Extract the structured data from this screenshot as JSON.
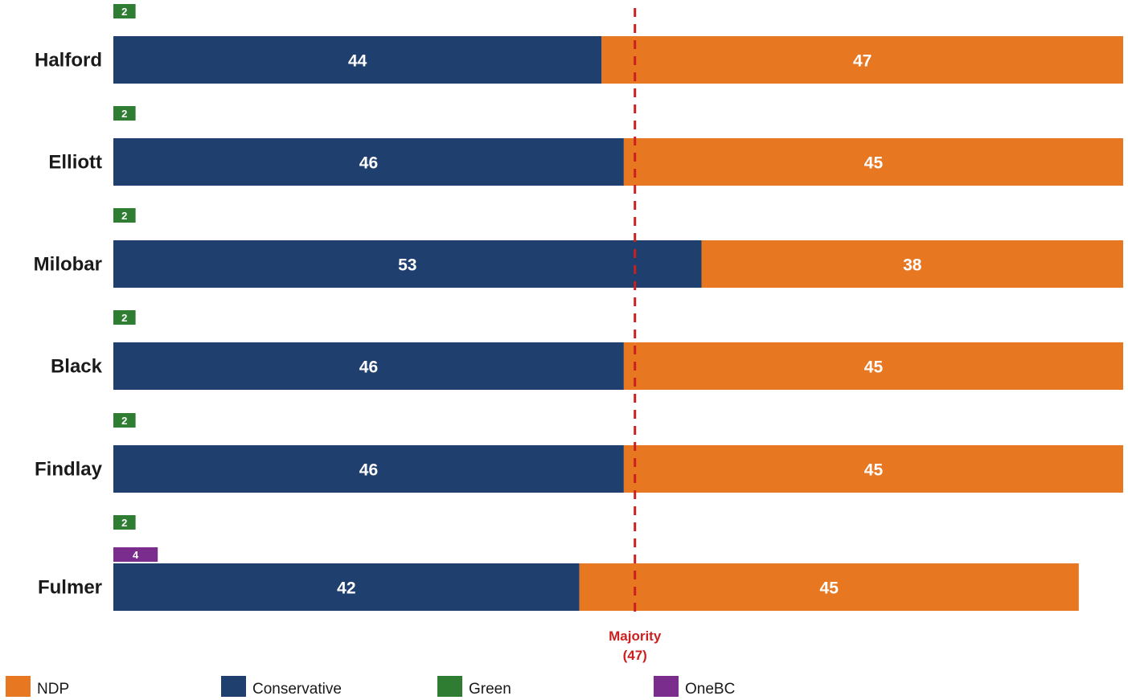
{
  "chart_data": {
    "type": "bar",
    "orientation": "horizontal",
    "stacked": true,
    "categories": [
      "Halford",
      "Elliott",
      "Milobar",
      "Black",
      "Findlay",
      "Fulmer"
    ],
    "series": [
      {
        "name": "Conservative",
        "color": "#1f3f6e",
        "values": [
          44,
          46,
          53,
          46,
          46,
          42
        ]
      },
      {
        "name": "NDP",
        "color": "#e87722",
        "values": [
          47,
          45,
          38,
          45,
          45,
          45
        ]
      },
      {
        "name": "Green",
        "color": "#2e7d32",
        "values": [
          2,
          2,
          2,
          2,
          2,
          2
        ]
      },
      {
        "name": "OneBC",
        "color": "#7b2d8e",
        "values": [
          null,
          null,
          null,
          null,
          null,
          4
        ]
      }
    ],
    "xlim": [
      0,
      91
    ],
    "reference_line": {
      "value": 47,
      "label_line1": "Majority",
      "label_line2": "(47)",
      "color": "#cc1f1f"
    },
    "legend": {
      "placement": "bottom-left",
      "entries": [
        {
          "name": "NDP",
          "color": "#e87722"
        },
        {
          "name": "Conservative",
          "color": "#1f3f6e"
        },
        {
          "name": "Green",
          "color": "#2e7d32"
        },
        {
          "name": "OneBC",
          "color": "#7b2d8e"
        }
      ]
    },
    "grid": false
  }
}
